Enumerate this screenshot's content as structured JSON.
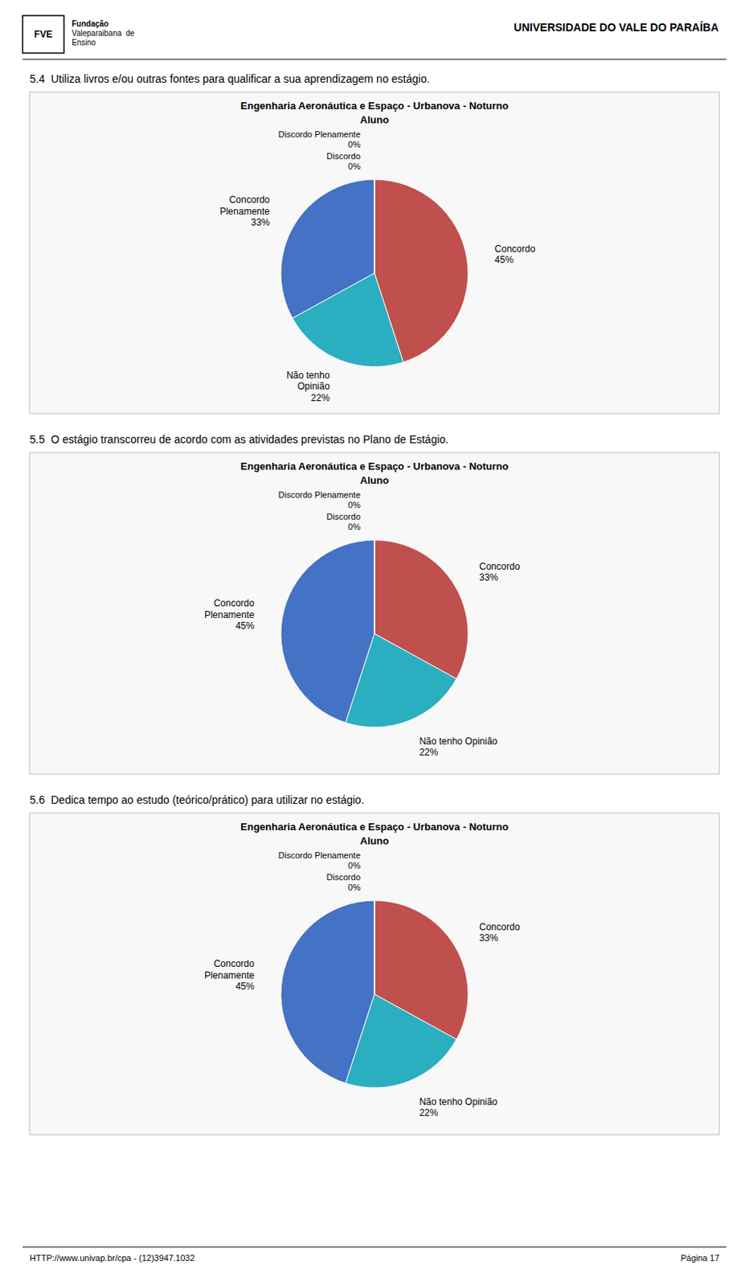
{
  "header": {
    "left": [
      "Fundação",
      "Valeparaibana  de",
      "Ensino"
    ],
    "logo": "FVE",
    "right": "UNIVERSIDADE DO VALE DO PARAÍBA"
  },
  "chart_data": [
    {
      "type": "pie",
      "section": "5.4  Utiliza livros e/ou outras fontes para qualificar a sua aprendizagem no estágio.",
      "title": "Engenharia Aeronáutica e Espaço - Urbanova - Noturno",
      "subtitle": "Aluno",
      "values": [
        33,
        22,
        45,
        0.001,
        0.001
      ],
      "colors": [
        "#4472C4",
        "#2BAEBF",
        "#C0504D",
        "#999999",
        "#777777"
      ],
      "value_labels": [
        "Concordo\nPlenamente\n33%",
        "Não tenho\nOpinião\n22%",
        "Concordo\n45%",
        "Discordo Plenamente\n0%",
        "Discordo\n0%"
      ],
      "data_labels": true
    },
    {
      "type": "pie",
      "section": "5.5  O estágio transcorreu de acordo com as atividades previstas no Plano de Estágio.",
      "title": "Engenharia Aeronáutica e Espaço - Urbanova - Noturno",
      "subtitle": "Aluno",
      "values": [
        45,
        22,
        33,
        0.001,
        0.001
      ],
      "colors": [
        "#4472C4",
        "#2BAEBF",
        "#C0504D",
        "#999999",
        "#777777"
      ],
      "value_labels": [
        "Concordo\nPlenamente\n45%",
        "Não tenho Opinião\n22%",
        "Concordo\n33%",
        "Discordo Plenamente\n0%",
        "Discordo\n0%"
      ],
      "data_labels": true
    },
    {
      "type": "pie",
      "section": "5.6  Dedica tempo ao estudo (teórico/prático) para utilizar no estágio.",
      "title": "Engenharia Aeronáutica e Espaço - Urbanova - Noturno",
      "subtitle": "Aluno",
      "values": [
        45,
        22,
        33,
        0.001,
        0.001
      ],
      "colors": [
        "#4472C4",
        "#2BAEBF",
        "#C0504D",
        "#999999",
        "#777777"
      ],
      "value_labels": [
        "Concordo\nPlenamente\n45%",
        "Não tenho Opinião\n22%",
        "Concordo\n33%",
        "Discordo Plenamente\n0%",
        "Discordo\n0%"
      ],
      "data_labels": true
    }
  ],
  "footer": {
    "left": "HTTP://www.univap.br/cpa - (12)3947.1032",
    "right": "Página 17"
  }
}
